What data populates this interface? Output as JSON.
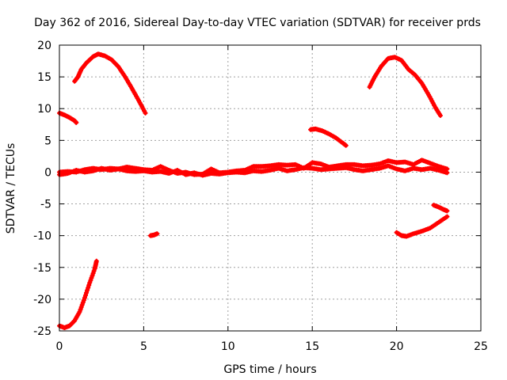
{
  "chart_data": {
    "type": "scatter",
    "title": "Day 362 of 2016, Sidereal Day-to-day VTEC variation (SDTVAR) for receiver prds",
    "xlabel": "GPS time / hours",
    "ylabel": "SDTVAR / TECUs",
    "xlim": [
      0,
      25
    ],
    "ylim": [
      -25,
      20
    ],
    "xticks": [
      0,
      5,
      10,
      15,
      20,
      25
    ],
    "yticks": [
      -25,
      -20,
      -15,
      -10,
      -5,
      0,
      5,
      10,
      15,
      20
    ],
    "xtick_labels": [
      "0",
      "5",
      "10",
      "15",
      "20",
      "25"
    ],
    "ytick_labels": [
      "-25",
      "-20",
      "-15",
      "-10",
      "-5",
      "0",
      "5",
      "10",
      "15",
      "20"
    ],
    "grid": true,
    "marker": "+",
    "color": "#ff0000",
    "series": [
      {
        "name": "arc-top-left",
        "points": [
          [
            0.9,
            14.3
          ],
          [
            1.1,
            15.0
          ],
          [
            1.3,
            16.2
          ],
          [
            1.6,
            17.2
          ],
          [
            2.0,
            18.2
          ],
          [
            2.3,
            18.6
          ],
          [
            2.7,
            18.3
          ],
          [
            3.1,
            17.7
          ],
          [
            3.5,
            16.6
          ],
          [
            3.9,
            15.0
          ],
          [
            4.3,
            13.2
          ],
          [
            4.7,
            11.3
          ],
          [
            5.1,
            9.3
          ]
        ]
      },
      {
        "name": "arc-left-mid",
        "points": [
          [
            0.0,
            9.3
          ],
          [
            0.3,
            9.0
          ],
          [
            0.6,
            8.6
          ],
          [
            0.9,
            8.1
          ],
          [
            1.0,
            7.8
          ]
        ]
      },
      {
        "name": "arc-bottom-left",
        "points": [
          [
            0.0,
            -24.2
          ],
          [
            0.3,
            -24.5
          ],
          [
            0.6,
            -24.2
          ],
          [
            0.9,
            -23.4
          ],
          [
            1.2,
            -22.0
          ],
          [
            1.5,
            -19.8
          ],
          [
            1.8,
            -17.4
          ],
          [
            2.1,
            -15.2
          ],
          [
            2.2,
            -14.0
          ]
        ]
      },
      {
        "name": "arc-neg10",
        "points": [
          [
            5.4,
            -10.0
          ],
          [
            5.6,
            -9.9
          ],
          [
            5.8,
            -9.7
          ]
        ]
      },
      {
        "name": "arc-mid-right",
        "points": [
          [
            14.9,
            6.7
          ],
          [
            15.2,
            6.8
          ],
          [
            15.6,
            6.5
          ],
          [
            16.0,
            6.0
          ],
          [
            16.4,
            5.4
          ],
          [
            16.8,
            4.6
          ],
          [
            17.0,
            4.2
          ]
        ]
      },
      {
        "name": "arc-top-right",
        "points": [
          [
            18.4,
            13.4
          ],
          [
            18.7,
            15.0
          ],
          [
            19.1,
            16.7
          ],
          [
            19.5,
            17.9
          ],
          [
            19.9,
            18.1
          ],
          [
            20.3,
            17.6
          ],
          [
            20.7,
            16.2
          ],
          [
            21.1,
            15.3
          ],
          [
            21.5,
            14.0
          ],
          [
            21.9,
            12.2
          ],
          [
            22.3,
            10.2
          ],
          [
            22.6,
            8.9
          ]
        ]
      },
      {
        "name": "arc-neg-right-a",
        "points": [
          [
            22.2,
            -5.2
          ],
          [
            22.5,
            -5.5
          ],
          [
            22.8,
            -5.9
          ],
          [
            23.0,
            -6.1
          ]
        ]
      },
      {
        "name": "arc-neg-right-b",
        "points": [
          [
            20.0,
            -9.5
          ],
          [
            20.3,
            -10.0
          ],
          [
            20.6,
            -10.1
          ],
          [
            21.0,
            -9.7
          ],
          [
            21.5,
            -9.3
          ],
          [
            22.0,
            -8.8
          ],
          [
            22.5,
            -7.9
          ],
          [
            23.0,
            -7.0
          ]
        ]
      },
      {
        "name": "band-a",
        "points": [
          [
            0.0,
            0.0
          ],
          [
            0.5,
            0.1
          ],
          [
            1.0,
            0.0
          ],
          [
            1.5,
            0.4
          ],
          [
            2.0,
            0.6
          ],
          [
            2.5,
            0.4
          ],
          [
            3.0,
            0.6
          ],
          [
            3.5,
            0.5
          ],
          [
            4.0,
            0.8
          ],
          [
            4.5,
            0.6
          ],
          [
            5.0,
            0.4
          ],
          [
            5.5,
            0.3
          ],
          [
            6.0,
            0.9
          ],
          [
            6.5,
            0.3
          ],
          [
            7.0,
            -0.2
          ],
          [
            7.5,
            0.0
          ],
          [
            8.0,
            -0.4
          ],
          [
            8.5,
            -0.3
          ],
          [
            9.0,
            0.5
          ],
          [
            9.5,
            -0.1
          ],
          [
            10.0,
            0.0
          ],
          [
            10.5,
            0.2
          ],
          [
            11.0,
            0.3
          ],
          [
            11.5,
            0.9
          ],
          [
            12.0,
            0.9
          ],
          [
            12.5,
            1.0
          ],
          [
            13.0,
            1.2
          ],
          [
            13.5,
            1.1
          ],
          [
            14.0,
            1.2
          ],
          [
            14.5,
            0.6
          ],
          [
            15.0,
            1.5
          ],
          [
            15.5,
            1.3
          ],
          [
            16.0,
            0.8
          ],
          [
            16.5,
            1.0
          ],
          [
            17.0,
            1.2
          ],
          [
            17.5,
            1.2
          ],
          [
            18.0,
            1.0
          ],
          [
            18.5,
            1.1
          ],
          [
            19.0,
            1.3
          ],
          [
            19.5,
            1.8
          ],
          [
            20.0,
            1.5
          ],
          [
            20.5,
            1.6
          ],
          [
            21.0,
            1.2
          ],
          [
            21.5,
            1.9
          ],
          [
            22.0,
            1.4
          ],
          [
            22.5,
            0.9
          ],
          [
            23.0,
            0.5
          ]
        ]
      },
      {
        "name": "band-b",
        "points": [
          [
            0.0,
            -0.4
          ],
          [
            0.5,
            -0.2
          ],
          [
            1.0,
            0.3
          ],
          [
            1.5,
            0.0
          ],
          [
            2.0,
            0.2
          ],
          [
            2.5,
            0.6
          ],
          [
            3.0,
            0.3
          ],
          [
            3.5,
            0.5
          ],
          [
            4.0,
            0.2
          ],
          [
            4.5,
            0.1
          ],
          [
            5.0,
            0.2
          ],
          [
            5.5,
            0.0
          ],
          [
            6.0,
            0.1
          ],
          [
            6.5,
            -0.2
          ],
          [
            7.0,
            0.3
          ],
          [
            7.5,
            -0.4
          ],
          [
            8.0,
            -0.1
          ],
          [
            8.5,
            -0.5
          ],
          [
            9.0,
            -0.2
          ],
          [
            9.5,
            -0.3
          ],
          [
            10.0,
            -0.1
          ],
          [
            10.5,
            0.0
          ],
          [
            11.0,
            -0.1
          ],
          [
            11.5,
            0.2
          ],
          [
            12.0,
            0.1
          ],
          [
            12.5,
            0.3
          ],
          [
            13.0,
            0.6
          ],
          [
            13.5,
            0.2
          ],
          [
            14.0,
            0.4
          ],
          [
            14.5,
            0.7
          ],
          [
            15.0,
            0.6
          ],
          [
            15.5,
            0.4
          ],
          [
            16.0,
            0.5
          ],
          [
            16.5,
            0.6
          ],
          [
            17.0,
            0.7
          ],
          [
            17.5,
            0.4
          ],
          [
            18.0,
            0.2
          ],
          [
            18.5,
            0.4
          ],
          [
            19.0,
            0.6
          ],
          [
            19.5,
            1.0
          ],
          [
            20.0,
            0.5
          ],
          [
            20.5,
            0.2
          ],
          [
            21.0,
            0.6
          ],
          [
            21.5,
            0.4
          ],
          [
            22.0,
            0.6
          ],
          [
            22.5,
            0.3
          ],
          [
            23.0,
            -0.1
          ]
        ]
      }
    ]
  }
}
